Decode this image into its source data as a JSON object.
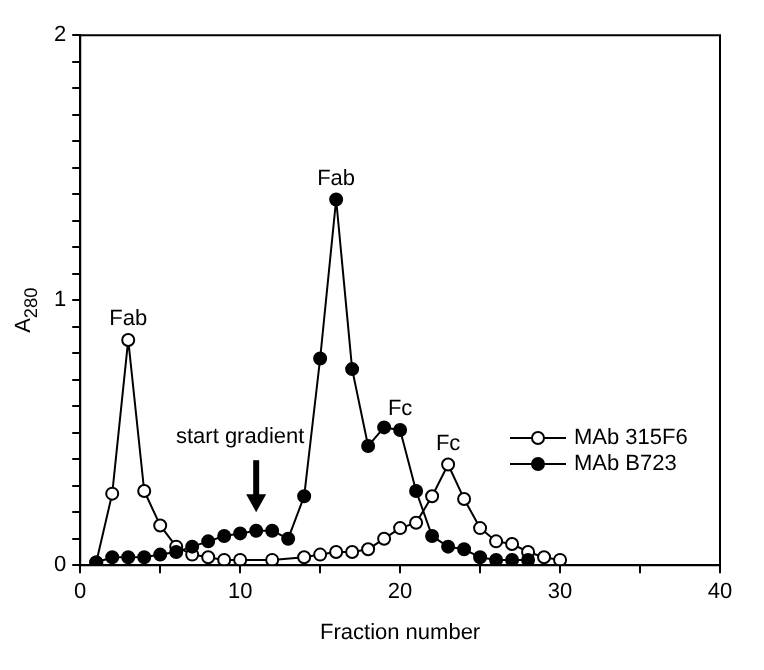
{
  "chart_data": {
    "type": "line",
    "xlabel": "Fraction number",
    "ylabel": "A$_{280}$",
    "xlim": [
      0,
      40
    ],
    "xticks": [
      0,
      {
        "value": 5,
        "label": null
      },
      10,
      {
        "value": 15,
        "label": null
      },
      20,
      {
        "value": 25,
        "label": null
      },
      30,
      {
        "value": 35,
        "label": null
      },
      40
    ],
    "ylim": [
      0,
      2
    ],
    "yticks": [
      0,
      {
        "value": 0.1,
        "label": null
      },
      {
        "value": 0.2,
        "label": null
      },
      {
        "value": 0.3,
        "label": null
      },
      {
        "value": 0.4,
        "label": null
      },
      {
        "value": 0.5,
        "label": null
      },
      {
        "value": 0.6,
        "label": null
      },
      {
        "value": 0.7,
        "label": null
      },
      {
        "value": 0.8,
        "label": null
      },
      {
        "value": 0.9,
        "label": null
      },
      1,
      {
        "value": 1.1,
        "label": null
      },
      {
        "value": 1.2,
        "label": null
      },
      {
        "value": 1.3,
        "label": null
      },
      {
        "value": 1.4,
        "label": null
      },
      {
        "value": 1.5,
        "label": null
      },
      {
        "value": 1.6,
        "label": null
      },
      {
        "value": 1.7,
        "label": null
      },
      {
        "value": 1.8,
        "label": null
      },
      {
        "value": 1.9,
        "label": null
      },
      2
    ],
    "grid": false,
    "legend": "right",
    "line_style": "solid",
    "series": [
      {
        "name": "MAb 315F6",
        "color": "#ffffff",
        "marker": "circle",
        "x": [
          1,
          2,
          3,
          4,
          5,
          6,
          7,
          8,
          9,
          10,
          12,
          14,
          15,
          16,
          17,
          18,
          19,
          20,
          21,
          22,
          23,
          24,
          25,
          26,
          27,
          28,
          29,
          30
        ],
        "values": [
          0.01,
          0.27,
          0.85,
          0.28,
          0.15,
          0.07,
          0.04,
          0.03,
          0.02,
          0.02,
          0.02,
          0.03,
          0.04,
          0.05,
          0.05,
          0.06,
          0.1,
          0.14,
          0.16,
          0.26,
          0.38,
          0.25,
          0.14,
          0.09,
          0.08,
          0.05,
          0.03,
          0.02
        ]
      },
      {
        "name": "MAb B723",
        "color": "#000000",
        "marker": "circle",
        "x": [
          1,
          2,
          3,
          4,
          5,
          6,
          7,
          8,
          9,
          10,
          11,
          12,
          13,
          14,
          15,
          16,
          17,
          18,
          19,
          20,
          21,
          22,
          23,
          24,
          25,
          26,
          27,
          28
        ],
        "values": [
          0.01,
          0.03,
          0.03,
          0.03,
          0.04,
          0.05,
          0.07,
          0.09,
          0.11,
          0.12,
          0.13,
          0.13,
          0.1,
          0.26,
          0.78,
          1.38,
          0.74,
          0.45,
          0.52,
          0.51,
          0.28,
          0.11,
          0.07,
          0.06,
          0.03,
          0.02,
          0.02,
          0.02
        ]
      }
    ],
    "annotations": [
      {
        "text": "Fab",
        "x": 3,
        "y": 0.85
      },
      {
        "text": "Fab",
        "x": 16,
        "y": 1.38
      },
      {
        "text": "Fc",
        "x": 20,
        "y": 0.51
      },
      {
        "text": "Fc",
        "x": 23,
        "y": 0.38
      },
      "start gradient"
    ]
  }
}
